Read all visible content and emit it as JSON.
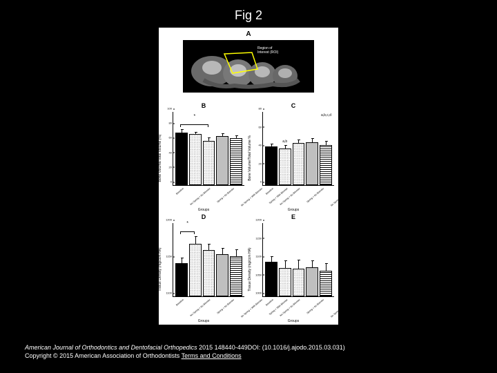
{
  "title": "Fig 2",
  "figure": {
    "panelA": {
      "label": "A",
      "roi_label": "Region of\nInterest (ROI)",
      "roi_outline_color": "#ffff00"
    },
    "charts": {
      "common": {
        "categories": [
          "Baseline",
          "No Spring + No Bleeder",
          "Spring + No Bleeder",
          "No Spring + With Bleeder",
          "Spring + With Bleeder"
        ],
        "xlabel": "Groups",
        "bar_patterns": [
          "solid",
          "lightdot",
          "lightdot",
          "dense",
          "lines"
        ],
        "background_color": "#ffffff",
        "axis_color": "#000000",
        "label_fontsize": 5
      },
      "B": {
        "label": "B",
        "ylabel": "Bone Volume/Total Volume (%)",
        "ylim": [
          0,
          100
        ],
        "ytick_step": 20,
        "values": [
          72,
          70,
          60,
          67,
          64
        ],
        "errors": [
          4,
          3,
          5,
          4,
          4
        ],
        "sig_bracket": {
          "from_idx": 0,
          "to_idx": 2,
          "star": "*"
        }
      },
      "C": {
        "label": "C",
        "ylabel": "Bone Volume/Total Volume %",
        "ylim": [
          0,
          80
        ],
        "ytick_step": 20,
        "values": [
          42,
          40,
          46,
          47,
          44
        ],
        "errors": [
          3,
          4,
          4,
          4,
          4
        ],
        "annotation": "a,b,c,d",
        "annot_on_bars": {
          "1": "a,b"
        }
      },
      "D": {
        "label": "D",
        "ylabel": "Tissue Density (mg/ccm HA)",
        "ylim": [
          1100,
          1200
        ],
        "yticks": [
          1100,
          1150,
          1200
        ],
        "values": [
          1145,
          1172,
          1163,
          1158,
          1155
        ],
        "errors": [
          8,
          10,
          9,
          8,
          9
        ],
        "sig_bracket": {
          "from_idx": 0,
          "to_idx": 1,
          "star": "*"
        }
      },
      "E": {
        "label": "E",
        "ylabel": "Tissue Density (mg/ccm HA)",
        "ylim": [
          1000,
          1200
        ],
        "yticks": [
          1000,
          1050,
          1100,
          1150,
          1200
        ],
        "values": [
          1095,
          1078,
          1075,
          1080,
          1070
        ],
        "errors": [
          15,
          20,
          25,
          18,
          20
        ]
      }
    }
  },
  "caption": {
    "journal": "American Journal of Orthodontics and Dentofacial Orthopedics",
    "citation": " 2015 148440-449DOI: (10.1016/j.ajodo.2015.03.031)",
    "copyright": "Copyright © 2015 American Association of Orthodontists ",
    "terms": "Terms and Conditions"
  }
}
